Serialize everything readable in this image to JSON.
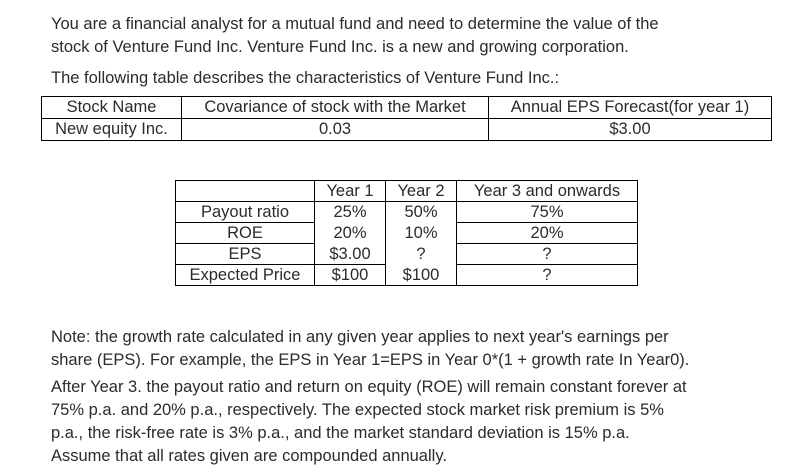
{
  "intro": {
    "line1": "You are a financial analyst for a mutual fund and need to determine the value of the",
    "line2": "stock of Venture Fund Inc. Venture Fund Inc. is a new and growing corporation.",
    "line3": "The following table describes the characteristics of Venture Fund Inc.:"
  },
  "table1": {
    "headers": [
      "Stock Name",
      "Covariance of stock with the Market",
      "Annual EPS Forecast(for year 1)"
    ],
    "row": [
      "New equity Inc.",
      "0.03",
      "$3.00"
    ]
  },
  "table2": {
    "headers": [
      "",
      "Year 1",
      "Year 2",
      "Year 3 and onwards"
    ],
    "rows": [
      [
        "Payout ratio",
        "25%",
        "50%",
        "75%"
      ],
      [
        "ROE",
        "20%",
        "10%",
        "20%"
      ],
      [
        "EPS",
        "$3.00",
        "?",
        "?"
      ],
      [
        "Expected Price",
        "$100",
        "$100",
        "?"
      ]
    ]
  },
  "note": {
    "line1": "Note: the growth rate calculated in any given year applies to next year's earnings per",
    "line2": "share (EPS). For example, the EPS in Year 1=EPS in Year 0*(1 + growth rate In Year0)."
  },
  "after": {
    "line1": "After Year 3. the payout ratio and return on equity (ROE) will remain constant forever at",
    "line2": "75% p.a. and 20% p.a., respectively. The expected stock market risk premium is 5%",
    "line3": "p.a., the risk-free rate is 3% p.a., and the market standard deviation is 15% p.a.",
    "line4": "Assume that all rates given are compounded annually."
  }
}
